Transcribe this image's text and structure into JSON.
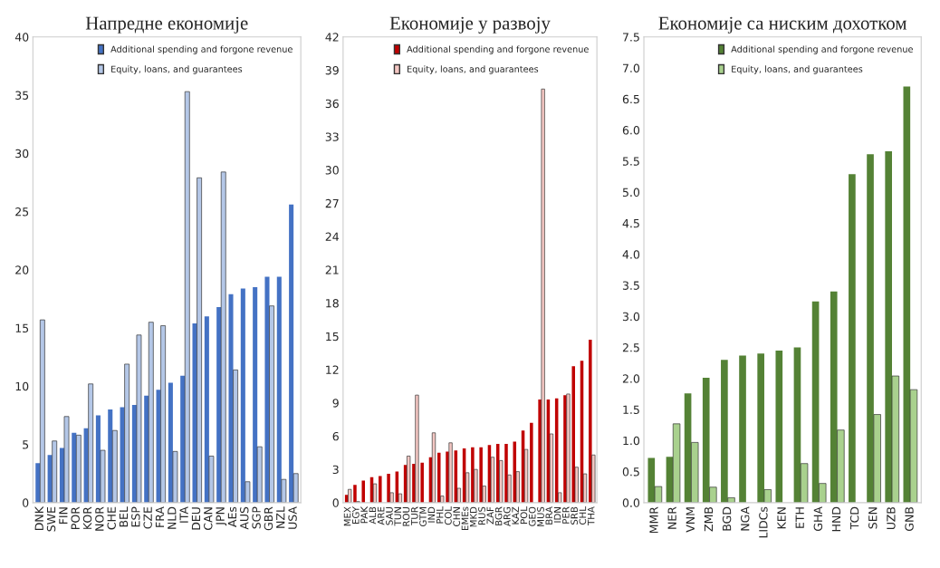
{
  "chart_data": [
    {
      "type": "bar",
      "title": "Напредне економије",
      "categories": [
        "DNK",
        "SWE",
        "FIN",
        "POR",
        "KOR",
        "NOR",
        "CHE",
        "BEL",
        "ESP",
        "CZE",
        "FRA",
        "NLD",
        "ITA",
        "DEU",
        "CAN",
        "JPN",
        "AEs",
        "AUS",
        "SGP",
        "GBR",
        "NZL",
        "USA"
      ],
      "series": [
        {
          "name": "Additional spending and forgone revenue",
          "color": "#4472c4",
          "values": [
            3.4,
            4.1,
            4.7,
            6.0,
            6.4,
            7.5,
            8.0,
            8.2,
            8.4,
            9.2,
            9.7,
            10.3,
            10.9,
            15.4,
            16.0,
            16.8,
            17.9,
            18.4,
            18.5,
            19.4,
            19.4,
            25.6
          ]
        },
        {
          "name": "Equity, loans, and guarantees",
          "color": "#b4c7e7",
          "values": [
            15.7,
            5.3,
            7.4,
            5.8,
            10.2,
            4.5,
            6.2,
            11.9,
            14.4,
            15.5,
            15.2,
            4.4,
            35.3,
            27.9,
            4.0,
            28.4,
            11.4,
            1.8,
            4.8,
            16.9,
            2.0,
            2.5
          ]
        }
      ],
      "ylim": [
        0,
        40
      ],
      "yticks": [
        0,
        5,
        10,
        15,
        20,
        25,
        30,
        35,
        40
      ],
      "grid": false,
      "legend": "top right"
    },
    {
      "type": "bar",
      "title": "Економије у развоју",
      "categories": [
        "MEX",
        "EGY",
        "PAK",
        "ALB",
        "ARE",
        "SAU",
        "TUN",
        "ROU",
        "TUR",
        "GTM",
        "IND",
        "PHL",
        "COL",
        "CHN",
        "EMEs",
        "MKD",
        "RUS",
        "ZAF",
        "BGR",
        "ARG",
        "KAZ",
        "POL",
        "GEO",
        "MUS",
        "BRA",
        "IDN",
        "PER",
        "SRB",
        "CHL",
        "THA"
      ],
      "series": [
        {
          "name": "Additional spending and forgone revenue",
          "color": "#c00000",
          "values": [
            0.7,
            1.6,
            2.0,
            2.3,
            2.4,
            2.6,
            2.8,
            3.4,
            3.5,
            3.6,
            4.1,
            4.5,
            4.6,
            4.7,
            4.9,
            5.0,
            5.0,
            5.2,
            5.3,
            5.3,
            5.5,
            6.5,
            7.2,
            9.3,
            9.3,
            9.4,
            9.7,
            12.3,
            12.8,
            14.7
          ]
        },
        {
          "name": "Equity, loans, and guarantees",
          "color": "#f4c7c3",
          "values": [
            1.2,
            0.1,
            null,
            1.7,
            null,
            0.9,
            0.8,
            4.2,
            9.7,
            null,
            6.3,
            0.6,
            5.4,
            1.3,
            2.7,
            3.0,
            1.5,
            4.1,
            3.8,
            2.5,
            2.8,
            4.8,
            null,
            37.3,
            6.2,
            0.9,
            9.8,
            3.2,
            2.6,
            4.3
          ]
        }
      ],
      "ylim": [
        0,
        42
      ],
      "yticks": [
        0,
        3,
        6,
        9,
        12,
        15,
        18,
        21,
        24,
        27,
        30,
        33,
        36,
        39,
        42
      ],
      "grid": false,
      "legend": "top right"
    },
    {
      "type": "bar",
      "title": "Економије са ниским дохотком",
      "categories": [
        "MMR",
        "NER",
        "VNM",
        "ZMB",
        "BGD",
        "NGA",
        "LIDCs",
        "KEN",
        "ETH",
        "GHA",
        "HND",
        "TCD",
        "SEN",
        "UZB",
        "GNB"
      ],
      "series": [
        {
          "name": "Additional spending and forgone revenue",
          "color": "#548235",
          "values": [
            0.72,
            0.74,
            1.76,
            2.01,
            2.3,
            2.37,
            2.4,
            2.45,
            2.5,
            3.24,
            3.4,
            5.29,
            5.61,
            5.66,
            6.7
          ]
        },
        {
          "name": "Equity, loans, and guarantees",
          "color": "#a9d18e",
          "values": [
            0.26,
            1.27,
            0.97,
            0.25,
            0.08,
            null,
            0.21,
            null,
            0.63,
            0.31,
            1.17,
            null,
            1.42,
            2.04,
            1.82
          ]
        }
      ],
      "ylim": [
        0,
        7.5
      ],
      "yticks": [
        {
          "value": 0,
          "label": "0.0"
        },
        {
          "value": 0.5,
          "label": "0.5"
        },
        {
          "value": 1,
          "label": "1.0"
        },
        {
          "value": 1.5,
          "label": "1.5"
        },
        {
          "value": 2,
          "label": "2.0"
        },
        {
          "value": 2.5,
          "label": "2.5"
        },
        {
          "value": 3,
          "label": "3.0"
        },
        {
          "value": 3.5,
          "label": "3.5"
        },
        {
          "value": 4,
          "label": "4.0"
        },
        {
          "value": 4.5,
          "label": "4.5"
        },
        {
          "value": 5,
          "label": "5.0"
        },
        {
          "value": 5.5,
          "label": "5.5"
        },
        {
          "value": 6,
          "label": "6.0"
        },
        {
          "value": 6.5,
          "label": "6.5"
        },
        {
          "value": 7,
          "label": "7.0"
        },
        {
          "value": 7.5,
          "label": "7.5"
        }
      ],
      "grid": false,
      "legend": "top right"
    }
  ]
}
